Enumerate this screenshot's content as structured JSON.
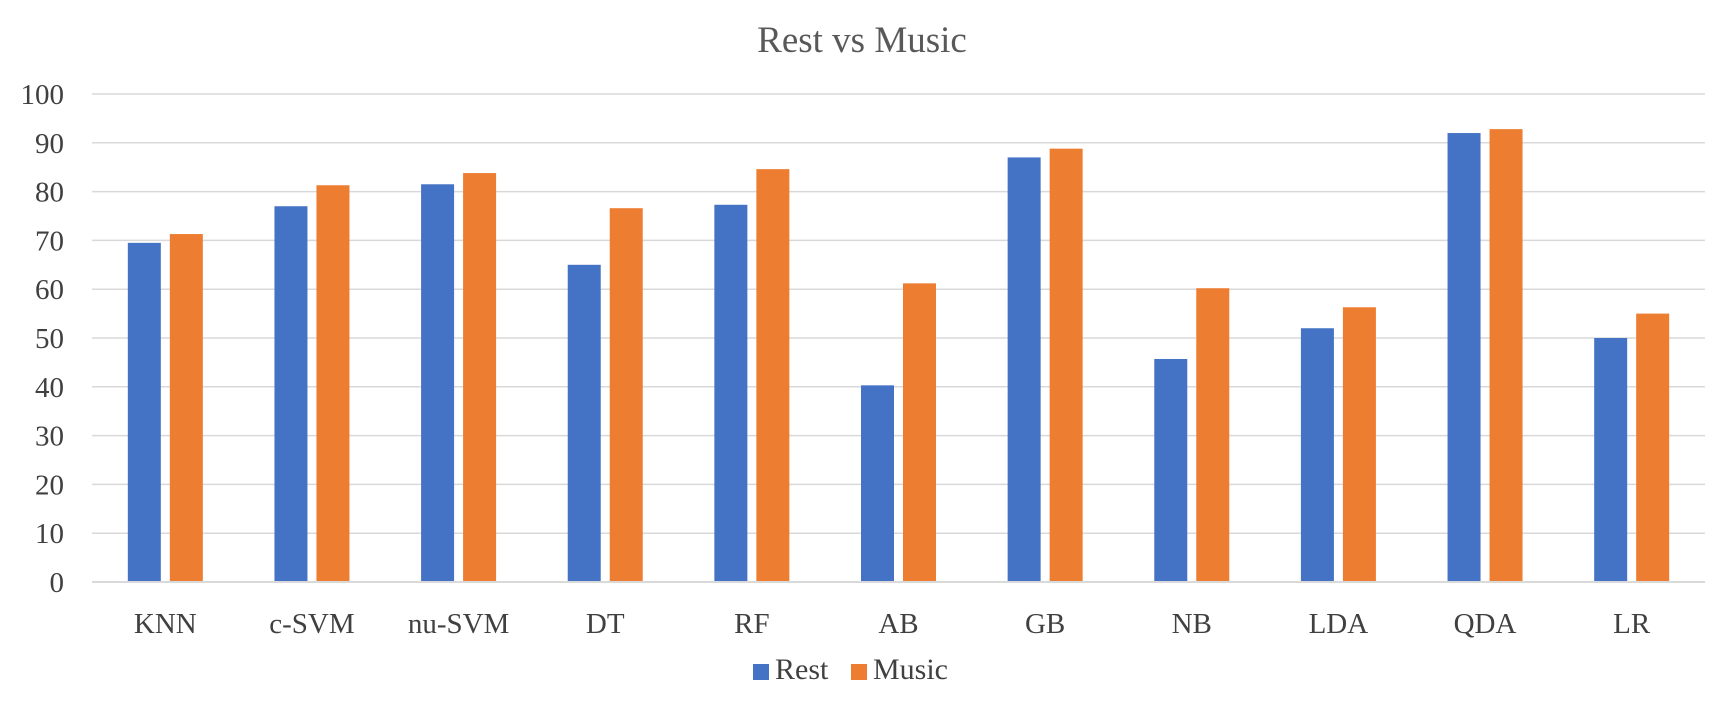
{
  "chart_data": {
    "type": "bar",
    "title": "Rest vs Music",
    "xlabel": "",
    "ylabel": "",
    "ylim": [
      0,
      100
    ],
    "yticks": [
      0,
      10,
      20,
      30,
      40,
      50,
      60,
      70,
      80,
      90,
      100
    ],
    "grid": true,
    "legend_position": "bottom",
    "categories": [
      "KNN",
      "c-SVM",
      "nu-SVM",
      "DT",
      "RF",
      "AB",
      "GB",
      "NB",
      "LDA",
      "QDA",
      "LR"
    ],
    "series": [
      {
        "name": "Rest",
        "color": "#4472c4",
        "values": [
          69.5,
          77.0,
          81.5,
          65.0,
          77.3,
          40.3,
          87.0,
          45.7,
          52.0,
          92.0,
          50.0
        ]
      },
      {
        "name": "Music",
        "color": "#ed7d31",
        "values": [
          71.3,
          81.3,
          83.8,
          76.6,
          84.6,
          61.2,
          88.8,
          60.2,
          56.3,
          92.8,
          55.0
        ]
      }
    ]
  }
}
